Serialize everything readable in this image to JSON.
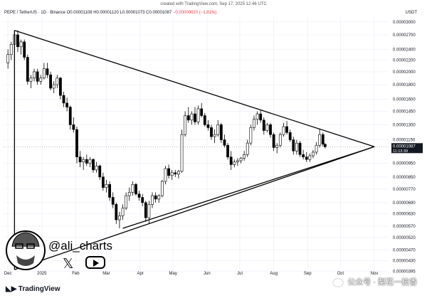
{
  "header": {
    "caption": "created with TradingView.com, Sep 17, 2025 12:46 UTC",
    "symbol": "PEPE / TetherUS · 1D · Binance",
    "ohlc": "O0.00001108 H0.00001120 L0.00001073 C0.00001087",
    "change": "−0.00000020 (−1.81%)",
    "currency": "USDT"
  },
  "price_tag": {
    "value": "0.00001087",
    "countdown": "11:13:39"
  },
  "watermark": {
    "handle": "@ali_charts",
    "x_icon": "x-logo-icon",
    "youtube_icon": "youtube-icon"
  },
  "footer": {
    "brand": "TradingView",
    "wechat": "公众号 · 梨花一枝香"
  },
  "colors": {
    "up": "#ffffff",
    "down": "#000000",
    "triangle": "#000000",
    "price_tag": "#131722"
  },
  "chart_data": {
    "type": "candlestick",
    "y_scale": "log",
    "y_ticks": [
      "0.00003000",
      "0.00002700",
      "0.00002400",
      "0.00002200",
      "0.00002000",
      "0.00001800",
      "0.00001600",
      "0.00001450",
      "0.00001300",
      "0.00001150",
      "0.00000950",
      "0.00000850",
      "0.00000770",
      "0.00000690",
      "0.00000630",
      "0.00000570",
      "0.00000520",
      "0.00000470",
      "0.00000430",
      "0.00000395"
    ],
    "x_ticks": [
      "Dec",
      "2025",
      "Feb",
      "Mar",
      "Apr",
      "May",
      "Jun",
      "Jul",
      "Aug",
      "Sep",
      "Oct",
      "Nov"
    ],
    "grid": true,
    "last_price": 1.087e-05,
    "series": [
      {
        "d": "2024-12-01",
        "o": 2.15e-05,
        "h": 2.4e-05,
        "l": 2.05e-05,
        "c": 2.3e-05
      },
      {
        "d": "2024-12-04",
        "o": 2.3e-05,
        "h": 2.55e-05,
        "l": 2.2e-05,
        "c": 2.5e-05
      },
      {
        "d": "2024-12-07",
        "o": 2.5e-05,
        "h": 2.8e-05,
        "l": 2.4e-05,
        "c": 2.7e-05
      },
      {
        "d": "2024-12-10",
        "o": 2.7e-05,
        "h": 2.8e-05,
        "l": 2.35e-05,
        "c": 2.45e-05
      },
      {
        "d": "2024-12-13",
        "o": 2.45e-05,
        "h": 2.6e-05,
        "l": 2.3e-05,
        "c": 2.55e-05
      },
      {
        "d": "2024-12-16",
        "o": 2.55e-05,
        "h": 2.6e-05,
        "l": 2.2e-05,
        "c": 2.25e-05
      },
      {
        "d": "2024-12-19",
        "o": 2.25e-05,
        "h": 2.3e-05,
        "l": 1.8e-05,
        "c": 1.85e-05
      },
      {
        "d": "2024-12-22",
        "o": 1.85e-05,
        "h": 1.95e-05,
        "l": 1.75e-05,
        "c": 1.9e-05
      },
      {
        "d": "2024-12-25",
        "o": 1.9e-05,
        "h": 2.05e-05,
        "l": 1.85e-05,
        "c": 2e-05
      },
      {
        "d": "2024-12-28",
        "o": 2e-05,
        "h": 2.05e-05,
        "l": 1.8e-05,
        "c": 1.85e-05
      },
      {
        "d": "2024-12-31",
        "o": 1.85e-05,
        "h": 1.95e-05,
        "l": 1.8e-05,
        "c": 1.9e-05
      },
      {
        "d": "2025-01-03",
        "o": 1.9e-05,
        "h": 2.15e-05,
        "l": 1.88e-05,
        "c": 2.05e-05
      },
      {
        "d": "2025-01-06",
        "o": 2.05e-05,
        "h": 2.15e-05,
        "l": 1.9e-05,
        "c": 1.95e-05
      },
      {
        "d": "2025-01-09",
        "o": 1.95e-05,
        "h": 2e-05,
        "l": 1.72e-05,
        "c": 1.75e-05
      },
      {
        "d": "2025-01-12",
        "o": 1.75e-05,
        "h": 1.85e-05,
        "l": 1.68e-05,
        "c": 1.8e-05
      },
      {
        "d": "2025-01-15",
        "o": 1.8e-05,
        "h": 1.95e-05,
        "l": 1.75e-05,
        "c": 1.9e-05
      },
      {
        "d": "2025-01-18",
        "o": 1.9e-05,
        "h": 1.92e-05,
        "l": 1.6e-05,
        "c": 1.65e-05
      },
      {
        "d": "2025-01-21",
        "o": 1.65e-05,
        "h": 1.7e-05,
        "l": 1.5e-05,
        "c": 1.55e-05
      },
      {
        "d": "2025-01-24",
        "o": 1.55e-05,
        "h": 1.62e-05,
        "l": 1.45e-05,
        "c": 1.5e-05
      },
      {
        "d": "2025-01-27",
        "o": 1.5e-05,
        "h": 1.52e-05,
        "l": 1.25e-05,
        "c": 1.3e-05
      },
      {
        "d": "2025-01-30",
        "o": 1.3e-05,
        "h": 1.38e-05,
        "l": 1.22e-05,
        "c": 1.25e-05
      },
      {
        "d": "2025-02-02",
        "o": 1.25e-05,
        "h": 1.28e-05,
        "l": 9.5e-06,
        "c": 1e-05
      },
      {
        "d": "2025-02-05",
        "o": 1e-05,
        "h": 1.05e-05,
        "l": 9.2e-06,
        "c": 9.6e-06
      },
      {
        "d": "2025-02-08",
        "o": 9.6e-06,
        "h": 1e-05,
        "l": 9e-06,
        "c": 9.8e-06
      },
      {
        "d": "2025-02-11",
        "o": 9.8e-06,
        "h": 1.02e-05,
        "l": 9.3e-06,
        "c": 9.5e-06
      },
      {
        "d": "2025-02-14",
        "o": 9.5e-06,
        "h": 1e-05,
        "l": 9.2e-06,
        "c": 9.8e-06
      },
      {
        "d": "2025-02-17",
        "o": 9.8e-06,
        "h": 9.9e-06,
        "l": 8.8e-06,
        "c": 9e-06
      },
      {
        "d": "2025-02-20",
        "o": 9e-06,
        "h": 9.6e-06,
        "l": 8.8e-06,
        "c": 9.3e-06
      },
      {
        "d": "2025-02-23",
        "o": 9.3e-06,
        "h": 9.4e-06,
        "l": 8.3e-06,
        "c": 8.5e-06
      },
      {
        "d": "2025-02-26",
        "o": 8.5e-06,
        "h": 8.8e-06,
        "l": 7.6e-06,
        "c": 7.8e-06
      },
      {
        "d": "2025-03-01",
        "o": 7.8e-06,
        "h": 8.3e-06,
        "l": 7.5e-06,
        "c": 8e-06
      },
      {
        "d": "2025-03-04",
        "o": 8e-06,
        "h": 8.2e-06,
        "l": 7e-06,
        "c": 7.2e-06
      },
      {
        "d": "2025-03-07",
        "o": 7.2e-06,
        "h": 7.5e-06,
        "l": 6.6e-06,
        "c": 6.8e-06
      },
      {
        "d": "2025-03-10",
        "o": 6.8e-06,
        "h": 6.9e-06,
        "l": 5.8e-06,
        "c": 6e-06
      },
      {
        "d": "2025-03-13",
        "o": 6e-06,
        "h": 6.4e-06,
        "l": 5.6e-06,
        "c": 6.2e-06
      },
      {
        "d": "2025-03-16",
        "o": 6.2e-06,
        "h": 6.8e-06,
        "l": 6e-06,
        "c": 6.6e-06
      },
      {
        "d": "2025-03-19",
        "o": 6.6e-06,
        "h": 7.5e-06,
        "l": 6.5e-06,
        "c": 7.3e-06
      },
      {
        "d": "2025-03-22",
        "o": 7.3e-06,
        "h": 7.8e-06,
        "l": 7e-06,
        "c": 7.5e-06
      },
      {
        "d": "2025-03-25",
        "o": 7.5e-06,
        "h": 8.2e-06,
        "l": 7.3e-06,
        "c": 8e-06
      },
      {
        "d": "2025-03-28",
        "o": 8e-06,
        "h": 8.1e-06,
        "l": 7.3e-06,
        "c": 7.4e-06
      },
      {
        "d": "2025-03-31",
        "o": 7.4e-06,
        "h": 7.6e-06,
        "l": 7e-06,
        "c": 7.2e-06
      },
      {
        "d": "2025-04-03",
        "o": 7.2e-06,
        "h": 7.4e-06,
        "l": 6.7e-06,
        "c": 6.9e-06
      },
      {
        "d": "2025-04-06",
        "o": 6.9e-06,
        "h": 7e-06,
        "l": 5.9e-06,
        "c": 6.1e-06
      },
      {
        "d": "2025-04-09",
        "o": 6.1e-06,
        "h": 7e-06,
        "l": 5.8e-06,
        "c": 6.8e-06
      },
      {
        "d": "2025-04-12",
        "o": 6.8e-06,
        "h": 7.5e-06,
        "l": 6.6e-06,
        "c": 7.3e-06
      },
      {
        "d": "2025-04-15",
        "o": 7.3e-06,
        "h": 7.5e-06,
        "l": 6.9e-06,
        "c": 7.1e-06
      },
      {
        "d": "2025-04-18",
        "o": 7.1e-06,
        "h": 7.4e-06,
        "l": 6.9e-06,
        "c": 7.3e-06
      },
      {
        "d": "2025-04-21",
        "o": 7.3e-06,
        "h": 8.3e-06,
        "l": 7.2e-06,
        "c": 8.2e-06
      },
      {
        "d": "2025-04-24",
        "o": 8.2e-06,
        "h": 9.3e-06,
        "l": 8e-06,
        "c": 9.1e-06
      },
      {
        "d": "2025-04-27",
        "o": 9.1e-06,
        "h": 9.4e-06,
        "l": 8.4e-06,
        "c": 8.6e-06
      },
      {
        "d": "2025-04-30",
        "o": 8.6e-06,
        "h": 9e-06,
        "l": 8.3e-06,
        "c": 8.8e-06
      },
      {
        "d": "2025-05-03",
        "o": 8.8e-06,
        "h": 9e-06,
        "l": 8.5e-06,
        "c": 8.7e-06
      },
      {
        "d": "2025-05-06",
        "o": 8.7e-06,
        "h": 9e-06,
        "l": 8.4e-06,
        "c": 8.9e-06
      },
      {
        "d": "2025-05-09",
        "o": 8.9e-06,
        "h": 1.25e-05,
        "l": 8.8e-06,
        "c": 1.2e-05
      },
      {
        "d": "2025-05-12",
        "o": 1.2e-05,
        "h": 1.45e-05,
        "l": 1.18e-05,
        "c": 1.4e-05
      },
      {
        "d": "2025-05-15",
        "o": 1.4e-05,
        "h": 1.5e-05,
        "l": 1.32e-05,
        "c": 1.35e-05
      },
      {
        "d": "2025-05-18",
        "o": 1.35e-05,
        "h": 1.45e-05,
        "l": 1.3e-05,
        "c": 1.42e-05
      },
      {
        "d": "2025-05-21",
        "o": 1.42e-05,
        "h": 1.5e-05,
        "l": 1.3e-05,
        "c": 1.33e-05
      },
      {
        "d": "2025-05-24",
        "o": 1.33e-05,
        "h": 1.52e-05,
        "l": 1.3e-05,
        "c": 1.48e-05
      },
      {
        "d": "2025-05-27",
        "o": 1.48e-05,
        "h": 1.55e-05,
        "l": 1.38e-05,
        "c": 1.4e-05
      },
      {
        "d": "2025-05-30",
        "o": 1.4e-05,
        "h": 1.43e-05,
        "l": 1.28e-05,
        "c": 1.3e-05
      },
      {
        "d": "2025-06-02",
        "o": 1.3e-05,
        "h": 1.35e-05,
        "l": 1.24e-05,
        "c": 1.27e-05
      },
      {
        "d": "2025-06-05",
        "o": 1.27e-05,
        "h": 1.3e-05,
        "l": 1.15e-05,
        "c": 1.18e-05
      },
      {
        "d": "2025-06-08",
        "o": 1.18e-05,
        "h": 1.25e-05,
        "l": 1.12e-05,
        "c": 1.2e-05
      },
      {
        "d": "2025-06-11",
        "o": 1.2e-05,
        "h": 1.35e-05,
        "l": 1.18e-05,
        "c": 1.3e-05
      },
      {
        "d": "2025-06-14",
        "o": 1.3e-05,
        "h": 1.32e-05,
        "l": 1.12e-05,
        "c": 1.15e-05
      },
      {
        "d": "2025-06-17",
        "o": 1.15e-05,
        "h": 1.2e-05,
        "l": 1.08e-05,
        "c": 1.1e-05
      },
      {
        "d": "2025-06-20",
        "o": 1.1e-05,
        "h": 1.12e-05,
        "l": 9.8e-06,
        "c": 1e-05
      },
      {
        "d": "2025-06-23",
        "o": 1e-05,
        "h": 1.05e-05,
        "l": 9e-06,
        "c": 9.4e-06
      },
      {
        "d": "2025-06-26",
        "o": 9.4e-06,
        "h": 9.8e-06,
        "l": 9.2e-06,
        "c": 9.6e-06
      },
      {
        "d": "2025-06-29",
        "o": 9.6e-06,
        "h": 9.9e-06,
        "l": 9.3e-06,
        "c": 9.7e-06
      },
      {
        "d": "2025-07-02",
        "o": 9.7e-06,
        "h": 1e-05,
        "l": 9.5e-06,
        "c": 9.9e-06
      },
      {
        "d": "2025-07-05",
        "o": 9.9e-06,
        "h": 1.05e-05,
        "l": 9.7e-06,
        "c": 1.02e-05
      },
      {
        "d": "2025-07-08",
        "o": 1.02e-05,
        "h": 1.15e-05,
        "l": 1e-05,
        "c": 1.12e-05
      },
      {
        "d": "2025-07-11",
        "o": 1.12e-05,
        "h": 1.3e-05,
        "l": 1.1e-05,
        "c": 1.27e-05
      },
      {
        "d": "2025-07-14",
        "o": 1.27e-05,
        "h": 1.4e-05,
        "l": 1.24e-05,
        "c": 1.36e-05
      },
      {
        "d": "2025-07-17",
        "o": 1.36e-05,
        "h": 1.45e-05,
        "l": 1.3e-05,
        "c": 1.42e-05
      },
      {
        "d": "2025-07-20",
        "o": 1.42e-05,
        "h": 1.46e-05,
        "l": 1.32e-05,
        "c": 1.35e-05
      },
      {
        "d": "2025-07-23",
        "o": 1.35e-05,
        "h": 1.38e-05,
        "l": 1.2e-05,
        "c": 1.24e-05
      },
      {
        "d": "2025-07-26",
        "o": 1.24e-05,
        "h": 1.32e-05,
        "l": 1.22e-05,
        "c": 1.3e-05
      },
      {
        "d": "2025-07-29",
        "o": 1.3e-05,
        "h": 1.32e-05,
        "l": 1.17e-05,
        "c": 1.2e-05
      },
      {
        "d": "2025-08-01",
        "o": 1.2e-05,
        "h": 1.22e-05,
        "l": 1.05e-05,
        "c": 1.08e-05
      },
      {
        "d": "2025-08-04",
        "o": 1.08e-05,
        "h": 1.12e-05,
        "l": 1.03e-05,
        "c": 1.1e-05
      },
      {
        "d": "2025-08-07",
        "o": 1.1e-05,
        "h": 1.22e-05,
        "l": 1.08e-05,
        "c": 1.2e-05
      },
      {
        "d": "2025-08-10",
        "o": 1.2e-05,
        "h": 1.32e-05,
        "l": 1.18e-05,
        "c": 1.28e-05
      },
      {
        "d": "2025-08-13",
        "o": 1.28e-05,
        "h": 1.34e-05,
        "l": 1.2e-05,
        "c": 1.22e-05
      },
      {
        "d": "2025-08-16",
        "o": 1.22e-05,
        "h": 1.25e-05,
        "l": 1.13e-05,
        "c": 1.15e-05
      },
      {
        "d": "2025-08-19",
        "o": 1.15e-05,
        "h": 1.18e-05,
        "l": 1.02e-05,
        "c": 1.05e-05
      },
      {
        "d": "2025-08-22",
        "o": 1.05e-05,
        "h": 1.15e-05,
        "l": 1.02e-05,
        "c": 1.12e-05
      },
      {
        "d": "2025-08-25",
        "o": 1.12e-05,
        "h": 1.14e-05,
        "l": 1e-05,
        "c": 1.02e-05
      },
      {
        "d": "2025-08-28",
        "o": 1.02e-05,
        "h": 1.06e-05,
        "l": 9.8e-06,
        "c": 1e-05
      },
      {
        "d": "2025-08-31",
        "o": 1e-05,
        "h": 1.04e-05,
        "l": 9.6e-06,
        "c": 9.8e-06
      },
      {
        "d": "2025-09-03",
        "o": 9.8e-06,
        "h": 1.03e-05,
        "l": 9.6e-06,
        "c": 1.01e-05
      },
      {
        "d": "2025-09-06",
        "o": 1.01e-05,
        "h": 1.06e-05,
        "l": 9.9e-06,
        "c": 1.04e-05
      },
      {
        "d": "2025-09-09",
        "o": 1.04e-05,
        "h": 1.13e-05,
        "l": 1.02e-05,
        "c": 1.1e-05
      },
      {
        "d": "2025-09-12",
        "o": 1.1e-05,
        "h": 1.26e-05,
        "l": 1.08e-05,
        "c": 1.2e-05
      },
      {
        "d": "2025-09-15",
        "o": 1.2e-05,
        "h": 1.22e-05,
        "l": 1.09e-05,
        "c": 1.11e-05
      },
      {
        "d": "2025-09-17",
        "o": 1.108e-05,
        "h": 1.12e-05,
        "l": 1.073e-05,
        "c": 1.087e-05
      }
    ],
    "trendlines": [
      {
        "from": {
          "d": "2024-12-07",
          "p": 2.8e-05
        },
        "to": {
          "d": "2025-11-01",
          "p": 1.087e-05
        }
      },
      {
        "from": {
          "d": "2024-12-07",
          "p": 4e-06
        },
        "to": {
          "d": "2025-11-01",
          "p": 1.087e-05
        }
      },
      {
        "from": {
          "d": "2025-03-16",
          "p": 5.6e-06
        },
        "to": {
          "d": "2025-11-01",
          "p": 1.087e-05
        }
      }
    ]
  }
}
